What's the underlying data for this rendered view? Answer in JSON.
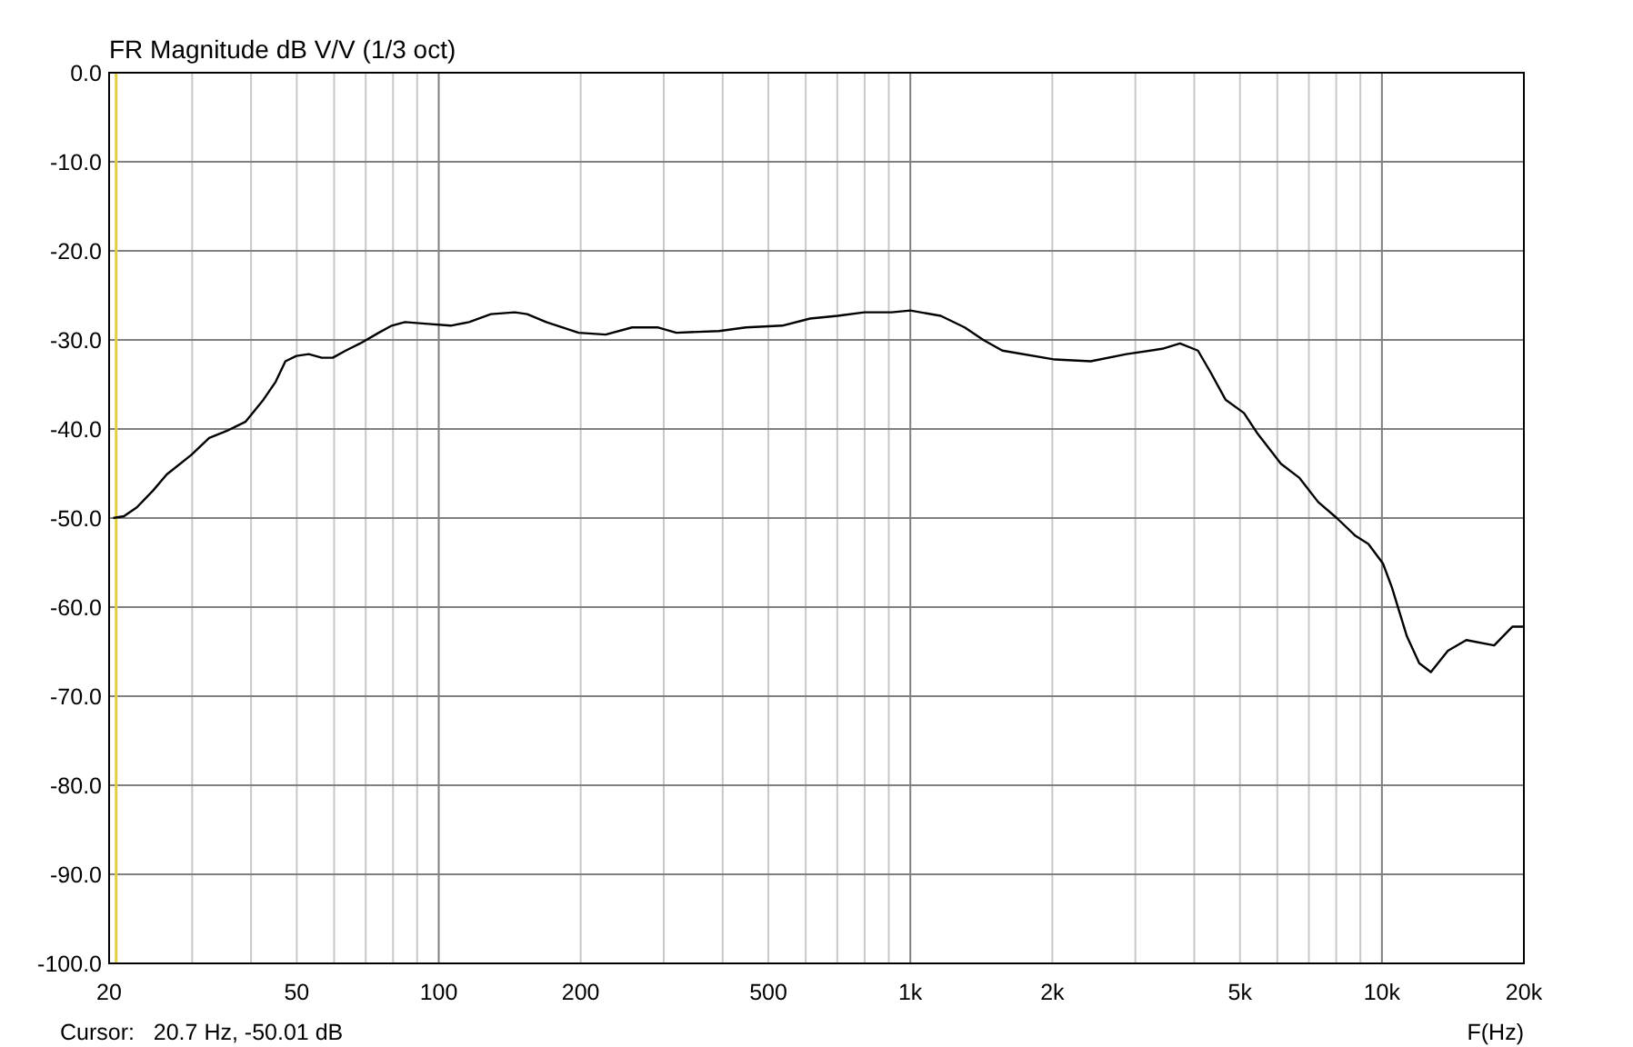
{
  "chart_data": {
    "type": "line",
    "title": "FR Magnitude dB V/V (1/3 oct)",
    "xlabel": "F(Hz)",
    "log": "x",
    "grid": true,
    "marker": "none",
    "line_style": "solid",
    "annotations": [
      "Cursor:   20.7 Hz, -50.01 dB"
    ],
    "ref_lines": [
      {
        "axis": "x",
        "value": 20.7,
        "color": "#e0d040"
      }
    ],
    "xlim": [
      20,
      20000
    ],
    "xticks": [
      {
        "value": 20,
        "label": "20"
      },
      {
        "value": 30,
        "label": null
      },
      {
        "value": 40,
        "label": null
      },
      {
        "value": 50,
        "label": "50"
      },
      {
        "value": 60,
        "label": null
      },
      {
        "value": 70,
        "label": null
      },
      {
        "value": 80,
        "label": null
      },
      {
        "value": 90,
        "label": null
      },
      {
        "value": 100,
        "label": "100"
      },
      {
        "value": 200,
        "label": "200"
      },
      {
        "value": 300,
        "label": null
      },
      {
        "value": 400,
        "label": null
      },
      {
        "value": 500,
        "label": "500"
      },
      {
        "value": 600,
        "label": null
      },
      {
        "value": 700,
        "label": null
      },
      {
        "value": 800,
        "label": null
      },
      {
        "value": 900,
        "label": null
      },
      {
        "value": 1000,
        "label": "1k"
      },
      {
        "value": 2000,
        "label": "2k"
      },
      {
        "value": 3000,
        "label": null
      },
      {
        "value": 4000,
        "label": null
      },
      {
        "value": 5000,
        "label": "5k"
      },
      {
        "value": 6000,
        "label": null
      },
      {
        "value": 7000,
        "label": null
      },
      {
        "value": 8000,
        "label": null
      },
      {
        "value": 9000,
        "label": null
      },
      {
        "value": 10000,
        "label": "10k"
      },
      {
        "value": 20000,
        "label": "20k"
      }
    ],
    "ylim": [
      -100,
      0
    ],
    "yticks": [
      {
        "value": 0,
        "label": "0.0"
      },
      {
        "value": -10,
        "label": "-10.0"
      },
      {
        "value": -20,
        "label": "-20.0"
      },
      {
        "value": -30,
        "label": "-30.0"
      },
      {
        "value": -40,
        "label": "-40.0"
      },
      {
        "value": -50,
        "label": "-50.0"
      },
      {
        "value": -60,
        "label": "-60.0"
      },
      {
        "value": -70,
        "label": "-70.0"
      },
      {
        "value": -80,
        "label": "-80.0"
      },
      {
        "value": -90,
        "label": "-90.0"
      },
      {
        "value": -100,
        "label": "-100.0"
      }
    ],
    "x": [
      20.4,
      21.5,
      22.9,
      24.8,
      26.5,
      29.9,
      32.6,
      35.6,
      38.9,
      42.5,
      45.1,
      47.3,
      49.9,
      53,
      56.5,
      59.6,
      63.5,
      68.1,
      74.6,
      79.5,
      84.8,
      94.9,
      106,
      116,
      129,
      145,
      154,
      169,
      198,
      226,
      257,
      292,
      319,
      393,
      448,
      535,
      613,
      701,
      799,
      913,
      1000,
      1160,
      1304,
      1428,
      1567,
      2026,
      2413,
      2872,
      3419,
      3731,
      4072,
      4338,
      4659,
      5097,
      5429,
      6106,
      6688,
      7325,
      8023,
      8788,
      9359,
      10050,
      10500,
      11300,
      12000,
      12700,
      13800,
      15100,
      17300,
      18900,
      20000
    ],
    "series": [
      {
        "color": "#000000",
        "values": [
          -50,
          -49.8,
          -48.8,
          -46.9,
          -45.1,
          -42.9,
          -41,
          -40.2,
          -39.2,
          -36.7,
          -34.7,
          -32.4,
          -31.8,
          -31.6,
          -32,
          -32,
          -31.2,
          -30.4,
          -29.2,
          -28.4,
          -28,
          -28.2,
          -28.4,
          -28,
          -27.1,
          -26.9,
          -27.1,
          -28,
          -29.2,
          -29.4,
          -28.6,
          -28.6,
          -29.2,
          -29,
          -28.6,
          -28.4,
          -27.6,
          -27.3,
          -26.9,
          -26.9,
          -26.7,
          -27.3,
          -28.6,
          -30,
          -31.2,
          -32.2,
          -32.4,
          -31.6,
          -31,
          -30.4,
          -31.2,
          -33.7,
          -36.7,
          -38.2,
          -40.4,
          -43.9,
          -45.5,
          -48.2,
          -50,
          -52,
          -52.9,
          -55.1,
          -57.8,
          -63.3,
          -66.3,
          -67.3,
          -64.9,
          -63.7,
          -64.3,
          -62.2,
          -62.2
        ]
      }
    ]
  }
}
